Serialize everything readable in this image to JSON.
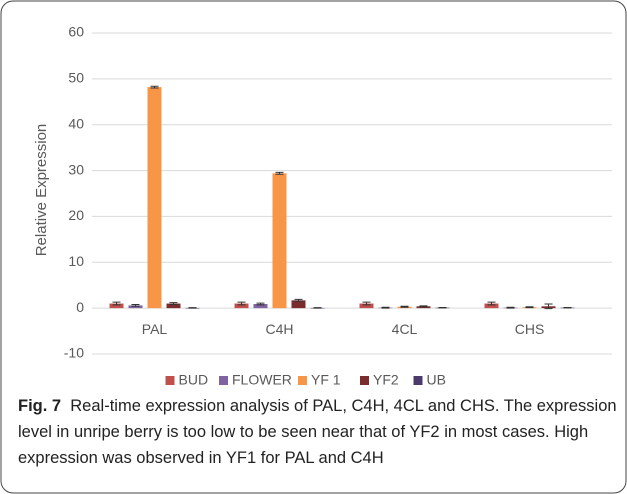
{
  "chart_data": {
    "type": "bar",
    "y_label": "Relative Expression",
    "categories": [
      "PAL",
      "C4H",
      "4CL",
      "CHS"
    ],
    "series": [
      {
        "name": "BUD",
        "color": "#c0504d",
        "values": [
          1,
          1,
          1,
          1
        ],
        "errors": [
          0.3,
          0.3,
          0.3,
          0.3
        ]
      },
      {
        "name": "FLOWER",
        "color": "#8064a2",
        "values": [
          0.6,
          0.9,
          0.1,
          0.1
        ],
        "errors": [
          0.2,
          0.2,
          0.1,
          0.1
        ]
      },
      {
        "name": "YF 1",
        "color": "#f79646",
        "values": [
          48.2,
          29.4,
          0.3,
          0.2
        ],
        "errors": [
          0.2,
          0.2,
          0.1,
          0.1
        ]
      },
      {
        "name": "YF2",
        "color": "#7b2c2c",
        "values": [
          1,
          1.7,
          0.4,
          0.4
        ],
        "errors": [
          0.2,
          0.2,
          0.1,
          0.5
        ]
      },
      {
        "name": "UB",
        "color": "#4b3a6b",
        "values": [
          0.05,
          0.05,
          0.1,
          0.1
        ],
        "errors": [
          0.05,
          0.05,
          0.05,
          0.05
        ]
      }
    ],
    "ylim": [
      -10,
      60
    ],
    "yticks": [
      -10,
      0,
      10,
      20,
      30,
      40,
      50,
      60
    ],
    "grid": true,
    "legend": "bottom",
    "caption_label": "Fig. 7",
    "caption": "Real-time expression analysis of PAL, C4H, 4CL and CHS. The expression level in unripe berry is too low to be seen near that of YF2 in most cases. High expression was observed in YF1 for PAL and C4H"
  }
}
